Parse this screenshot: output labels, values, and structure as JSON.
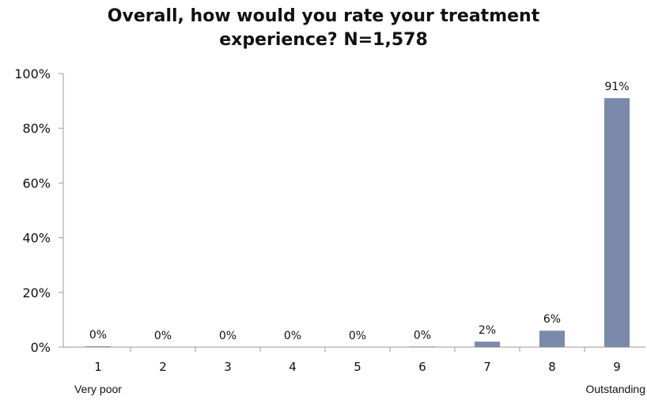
{
  "chart_data": {
    "type": "bar",
    "title_line1": "Overall, how would you rate your treatment",
    "title_line2": "experience? N=1,578",
    "categories": [
      "1",
      "2",
      "3",
      "4",
      "5",
      "6",
      "7",
      "8",
      "9"
    ],
    "values": [
      0.3,
      0,
      0,
      0,
      0,
      0.2,
      2,
      6,
      91
    ],
    "data_labels": [
      "0%",
      "0%",
      "0%",
      "0%",
      "0%",
      "0%",
      "2%",
      "6%",
      "91%"
    ],
    "y_ticks": [
      "0%",
      "20%",
      "40%",
      "60%",
      "80%",
      "100%"
    ],
    "y_tick_values": [
      0,
      20,
      40,
      60,
      80,
      100
    ],
    "ylim": [
      0,
      100
    ],
    "endpoint_labels": {
      "low": "Very poor",
      "high": "Outstanding"
    },
    "bar_color": "#7b8aaa",
    "grid": false,
    "legend": "none"
  }
}
